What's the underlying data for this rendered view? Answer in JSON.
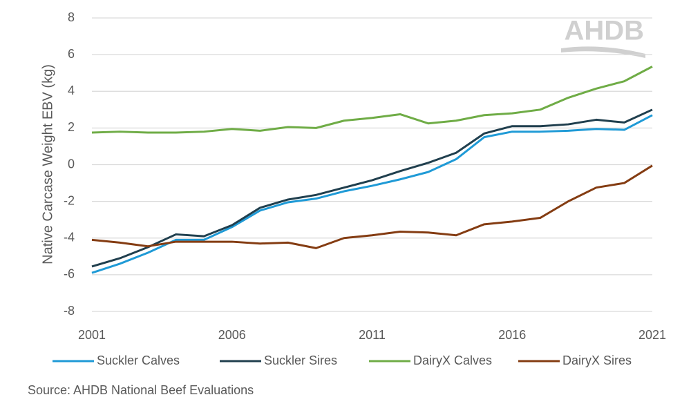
{
  "chart_data": {
    "type": "line",
    "y_label": "Native Carcase Weight EBV (kg)",
    "source": "Source: AHDB National Beef Evaluations",
    "logo": "AHDB",
    "x": [
      2001,
      2002,
      2003,
      2004,
      2005,
      2006,
      2007,
      2008,
      2009,
      2010,
      2011,
      2012,
      2013,
      2014,
      2015,
      2016,
      2017,
      2018,
      2019,
      2020,
      2021
    ],
    "xlim": [
      2001,
      2021
    ],
    "xticks": [
      2001,
      2006,
      2011,
      2016,
      2021
    ],
    "ylim": [
      -8,
      8
    ],
    "yticks": [
      -8,
      -6,
      -4,
      -2,
      0,
      2,
      4,
      6,
      8
    ],
    "grid": true,
    "legend": "bottom",
    "series": [
      {
        "name": "Suckler Calves",
        "color": "#1f9ad6",
        "values": [
          -5.9,
          -5.4,
          -4.8,
          -4.1,
          -4.1,
          -3.4,
          -2.5,
          -2.05,
          -1.85,
          -1.45,
          -1.15,
          -0.8,
          -0.4,
          0.3,
          1.5,
          1.8,
          1.8,
          1.85,
          1.95,
          1.9,
          2.7
        ]
      },
      {
        "name": "Suckler Sires",
        "color": "#203f4e",
        "values": [
          -5.55,
          -5.1,
          -4.5,
          -3.8,
          -3.9,
          -3.3,
          -2.35,
          -1.9,
          -1.65,
          -1.25,
          -0.85,
          -0.35,
          0.1,
          0.65,
          1.7,
          2.1,
          2.1,
          2.2,
          2.45,
          2.3,
          3.0
        ]
      },
      {
        "name": "DairyX Calves",
        "color": "#6fac46",
        "values": [
          1.75,
          1.8,
          1.75,
          1.75,
          1.8,
          1.95,
          1.85,
          2.05,
          2.0,
          2.4,
          2.55,
          2.75,
          2.25,
          2.4,
          2.7,
          2.8,
          3.0,
          3.65,
          4.15,
          4.55,
          5.35
        ]
      },
      {
        "name": "DairyX Sires",
        "color": "#843c12",
        "values": [
          -4.1,
          -4.25,
          -4.45,
          -4.2,
          -4.2,
          -4.2,
          -4.3,
          -4.25,
          -4.55,
          -4.0,
          -3.85,
          -3.65,
          -3.7,
          -3.85,
          -3.25,
          -3.1,
          -2.9,
          -2.0,
          -1.25,
          -1.0,
          -0.05
        ]
      }
    ]
  }
}
